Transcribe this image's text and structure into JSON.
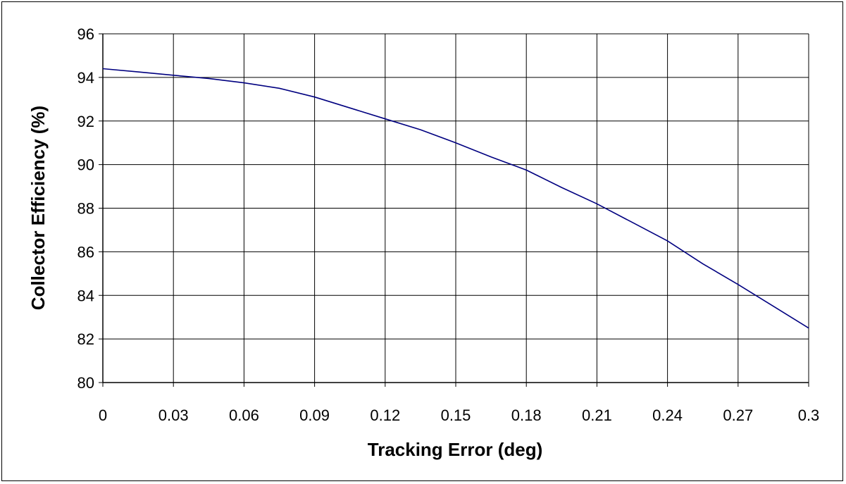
{
  "chart_data": {
    "type": "line",
    "title": "",
    "xlabel": "Tracking Error (deg)",
    "ylabel": "Collector Efficiency (%)",
    "xlim": [
      0,
      0.3
    ],
    "ylim": [
      80,
      96
    ],
    "x_ticks": [
      "0",
      "0.03",
      "0.06",
      "0.09",
      "0.12",
      "0.15",
      "0.18",
      "0.21",
      "0.24",
      "0.27",
      "0.3"
    ],
    "y_ticks": [
      "80",
      "82",
      "84",
      "86",
      "88",
      "90",
      "92",
      "94",
      "96"
    ],
    "grid": true,
    "legend": "none",
    "series": [
      {
        "color": "#000080",
        "points": [
          {
            "x": 0,
            "y": 94.4
          },
          {
            "x": 0.015,
            "y": 94.25
          },
          {
            "x": 0.03,
            "y": 94.1
          },
          {
            "x": 0.045,
            "y": 93.95
          },
          {
            "x": 0.06,
            "y": 93.75
          },
          {
            "x": 0.075,
            "y": 93.5
          },
          {
            "x": 0.09,
            "y": 93.1
          },
          {
            "x": 0.105,
            "y": 92.6
          },
          {
            "x": 0.12,
            "y": 92.1
          },
          {
            "x": 0.135,
            "y": 91.6
          },
          {
            "x": 0.15,
            "y": 91.0
          },
          {
            "x": 0.165,
            "y": 90.35
          },
          {
            "x": 0.18,
            "y": 89.75
          },
          {
            "x": 0.195,
            "y": 88.95
          },
          {
            "x": 0.21,
            "y": 88.2
          },
          {
            "x": 0.225,
            "y": 87.35
          },
          {
            "x": 0.24,
            "y": 86.5
          },
          {
            "x": 0.255,
            "y": 85.45
          },
          {
            "x": 0.27,
            "y": 84.5
          },
          {
            "x": 0.285,
            "y": 83.5
          },
          {
            "x": 0.3,
            "y": 82.5
          }
        ]
      }
    ]
  }
}
